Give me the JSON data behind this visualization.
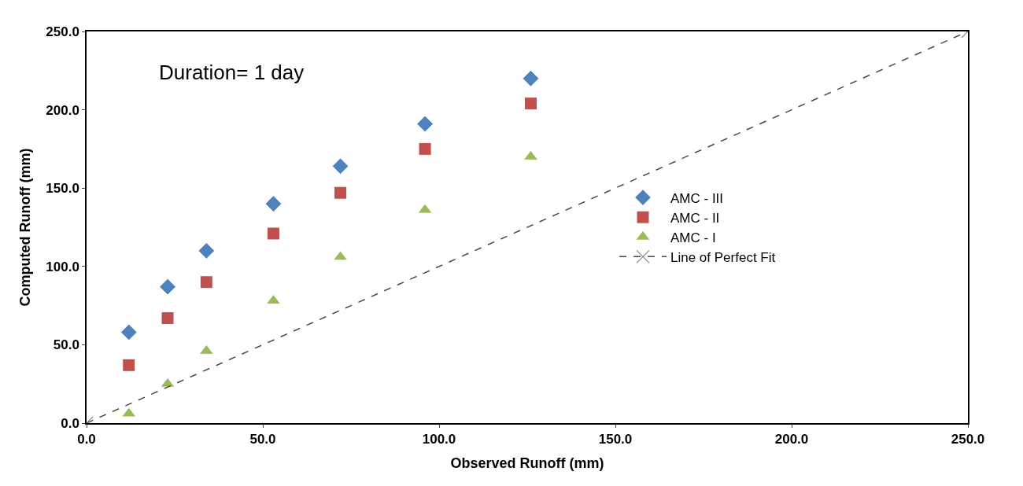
{
  "chart_data": {
    "type": "scatter",
    "xlabel": "Observed Runoff (mm)",
    "ylabel": "Computed Runoff (mm)",
    "annotations": [
      "Duration= 1 day"
    ],
    "x": [
      12,
      23,
      34,
      53,
      72,
      96,
      126
    ],
    "series": [
      {
        "name": "AMC - III",
        "color": "#4f81bd",
        "marker": "diamond",
        "values": [
          58,
          87,
          110,
          140,
          164,
          191,
          220
        ]
      },
      {
        "name": "AMC - II",
        "color": "#c0504d",
        "marker": "square",
        "values": [
          37,
          67,
          90,
          121,
          147,
          175,
          204
        ]
      },
      {
        "name": "AMC - I",
        "color": "#9bbb59",
        "marker": "triangle",
        "values": [
          6,
          25,
          46,
          78,
          106,
          136,
          170
        ]
      },
      {
        "name": "Line of Perfect Fit",
        "type": "line",
        "color": "#4a4a3a",
        "marker": "cross",
        "line_style": "dashed",
        "x": [
          0,
          250
        ],
        "values": [
          0,
          250
        ]
      }
    ],
    "xlim": [
      0,
      250
    ],
    "ylim": [
      0,
      250
    ],
    "xticks": [
      {
        "value": 0,
        "label": "0.0"
      },
      {
        "value": 50,
        "label": "50.0"
      },
      {
        "value": 100,
        "label": "100.0"
      },
      {
        "value": 150,
        "label": "150.0"
      },
      {
        "value": 200,
        "label": "200.0"
      },
      {
        "value": 250,
        "label": "250.0"
      }
    ],
    "yticks": [
      {
        "value": 0,
        "label": "0.0"
      },
      {
        "value": 50,
        "label": "50.0"
      },
      {
        "value": 100,
        "label": "100.0"
      },
      {
        "value": 150,
        "label": "150.0"
      },
      {
        "value": 200,
        "label": "200.0"
      },
      {
        "value": 250,
        "label": "250.0"
      }
    ],
    "legend": "right"
  }
}
